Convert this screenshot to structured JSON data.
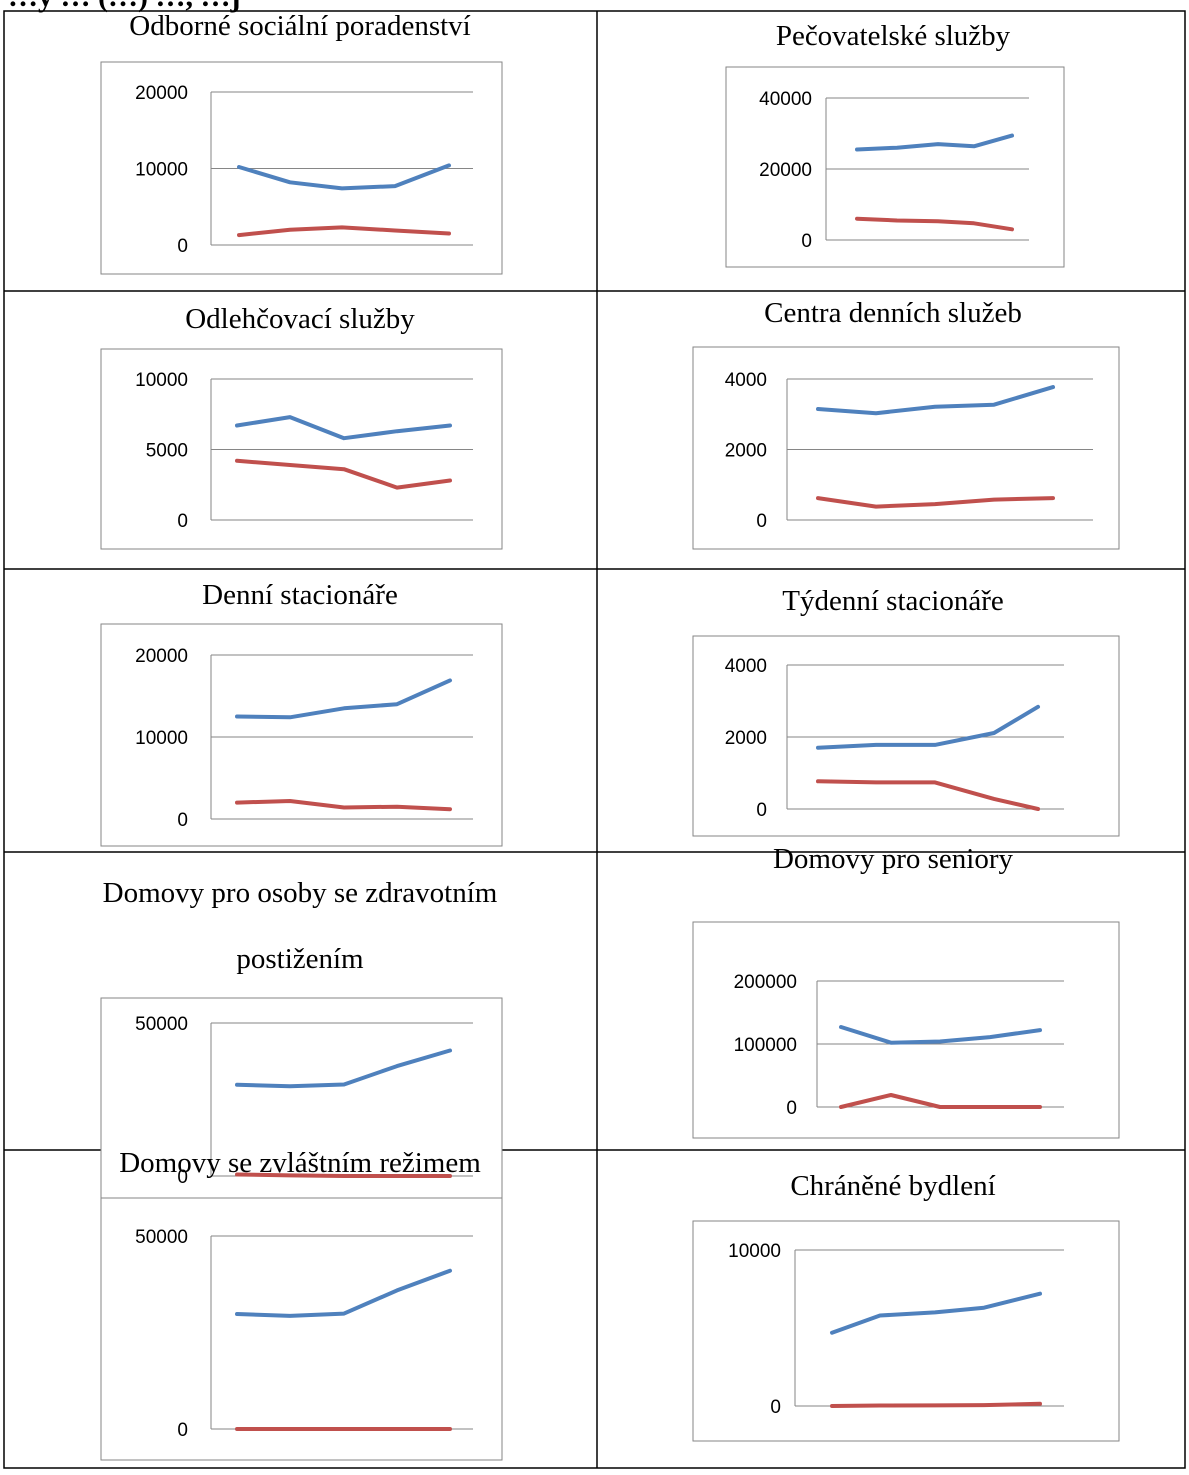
{
  "header_text": "…y … (…) …, …j",
  "colors": {
    "series_1": "#4f81bd",
    "series_2": "#c0504d",
    "grid": "#868686",
    "frame": "#868686",
    "border": "#000000"
  },
  "chart_data": [
    {
      "type": "line",
      "title": "Odborné sociální poradenství",
      "ylim": [
        0,
        20000
      ],
      "yticks": [
        "0",
        "10000",
        "20000"
      ],
      "grid": true,
      "series": [
        {
          "values": [
            10200,
            8200,
            7400,
            7700,
            10400
          ]
        },
        {
          "values": [
            1300,
            2000,
            2300,
            1900,
            1500
          ]
        }
      ]
    },
    {
      "type": "line",
      "title": "Pečovatelské služby",
      "ylim": [
        0,
        40000
      ],
      "yticks": [
        "0",
        "20000",
        "40000"
      ],
      "grid": true,
      "series": [
        {
          "values": [
            25500,
            26000,
            27000,
            26400,
            29400
          ]
        },
        {
          "values": [
            6000,
            5500,
            5300,
            4700,
            3000
          ]
        }
      ]
    },
    {
      "type": "line",
      "title": "Odlehčovací služby",
      "ylim": [
        0,
        10000
      ],
      "yticks": [
        "0",
        "5000",
        "10000"
      ],
      "grid": true,
      "series": [
        {
          "values": [
            6700,
            7300,
            5800,
            6300,
            6700
          ]
        },
        {
          "values": [
            4200,
            3900,
            3600,
            2300,
            2800
          ]
        }
      ]
    },
    {
      "type": "line",
      "title": "Centra denních služeb",
      "ylim": [
        0,
        4000
      ],
      "yticks": [
        "0",
        "2000",
        "4000"
      ],
      "grid": true,
      "series": [
        {
          "values": [
            3150,
            3030,
            3210,
            3270,
            3770
          ]
        },
        {
          "values": [
            620,
            380,
            450,
            580,
            620
          ]
        }
      ]
    },
    {
      "type": "line",
      "title": "Denní stacionáře",
      "ylim": [
        0,
        20000
      ],
      "yticks": [
        "0",
        "10000",
        "20000"
      ],
      "grid": true,
      "series": [
        {
          "values": [
            12500,
            12400,
            13500,
            14000,
            16900
          ]
        },
        {
          "values": [
            2000,
            2200,
            1400,
            1500,
            1200
          ]
        }
      ]
    },
    {
      "type": "line",
      "title": "Týdenní stacionáře",
      "ylim": [
        0,
        4000
      ],
      "yticks": [
        "0",
        "2000",
        "4000"
      ],
      "grid": true,
      "series": [
        {
          "values": [
            1700,
            1780,
            1780,
            2110,
            2840
          ]
        },
        {
          "values": [
            770,
            740,
            740,
            280,
            0
          ]
        }
      ]
    },
    {
      "type": "line",
      "title_lines": [
        "Domovy pro osoby se zdravotním",
        "postižením"
      ],
      "ylim": [
        0,
        50000
      ],
      "yticks": [
        "0",
        "50000"
      ],
      "grid": true,
      "series": [
        {
          "values": [
            29800,
            29300,
            29900,
            35900,
            41000
          ]
        },
        {
          "values": [
            500,
            200,
            0,
            0,
            0
          ]
        }
      ]
    },
    {
      "type": "line",
      "title": "Domovy pro seniory",
      "ylim": [
        0,
        200000
      ],
      "yticks": [
        "0",
        "100000",
        "200000"
      ],
      "grid": true,
      "series": [
        {
          "values": [
            127000,
            102000,
            104000,
            111000,
            122000
          ]
        },
        {
          "values": [
            0,
            19000,
            0,
            0,
            0
          ]
        }
      ]
    },
    {
      "type": "line",
      "title": "Domovy se zvláštním režimem",
      "ylim": [
        0,
        50000
      ],
      "yticks": [
        "0",
        "50000"
      ],
      "grid": true,
      "series": [
        {
          "values": [
            29800,
            29300,
            29900,
            35900,
            41000
          ]
        },
        {
          "values": [
            0,
            0,
            0,
            0,
            0
          ]
        }
      ]
    },
    {
      "type": "line",
      "title": "Chráněné bydlení",
      "ylim": [
        0,
        10000
      ],
      "yticks": [
        "0",
        "10000"
      ],
      "grid": true,
      "series": [
        {
          "values": [
            4700,
            5800,
            6000,
            6300,
            7200
          ]
        },
        {
          "values": [
            0,
            30,
            40,
            60,
            140
          ]
        }
      ]
    }
  ]
}
